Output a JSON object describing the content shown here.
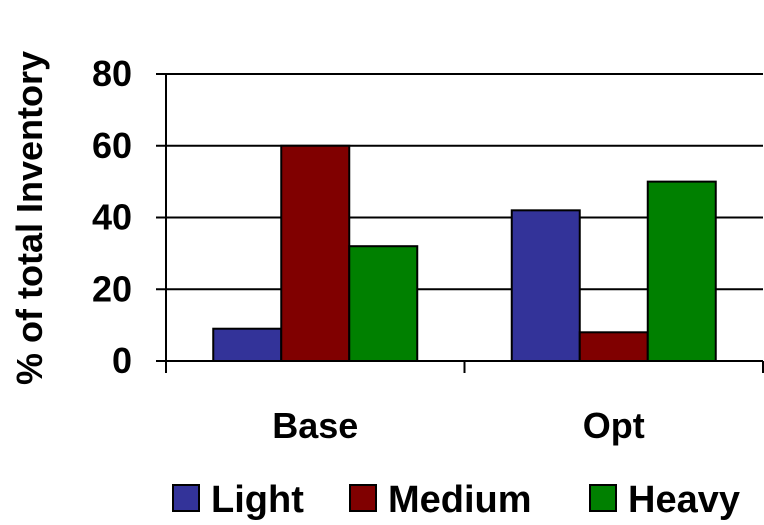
{
  "chart_data": {
    "type": "bar",
    "title": "",
    "xlabel": "",
    "ylabel": "% of total Inventory",
    "ylim": [
      0,
      80
    ],
    "yticks": [
      0,
      20,
      40,
      60,
      80
    ],
    "grid": true,
    "legend_position": "bottom",
    "categories": [
      "Base",
      "Opt"
    ],
    "series": [
      {
        "name": "Light",
        "color": "#333399",
        "values": [
          9,
          42
        ]
      },
      {
        "name": "Medium",
        "color": "#800000",
        "values": [
          60,
          8
        ]
      },
      {
        "name": "Heavy",
        "color": "#008000",
        "values": [
          32,
          50
        ]
      }
    ]
  }
}
